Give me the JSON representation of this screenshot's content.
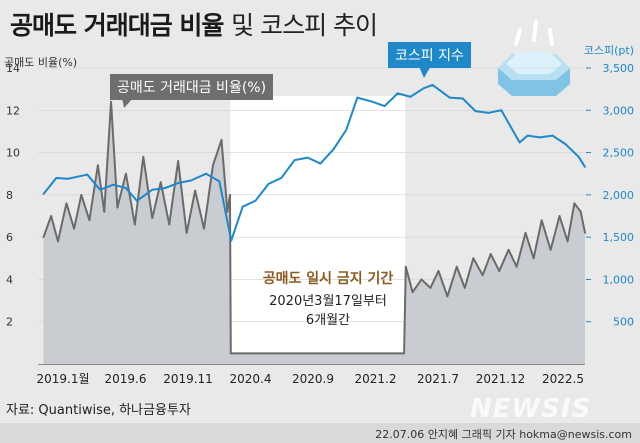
{
  "title": {
    "bold": "공매도 거래대금 비율",
    "rest": "및 코스피 추이"
  },
  "axes": {
    "left_title": "공매도 비율(%)",
    "right_title": "코스피(pt)"
  },
  "annotations": {
    "short_ratio_label": "공매도 거래대금 비율(%)",
    "kospi_label": "코스피 지수",
    "ban_title": "공매도 일시 금지 기간",
    "ban_line1": "2020년3월17일부터",
    "ban_line2": "6개월간"
  },
  "source": "자료: Quantiwise, 하나금융투자",
  "credit": "22.07.06 안지혜 그래픽 기자 hokma@newsis.com",
  "watermark": "NEWSIS",
  "colors": {
    "kospi": "#1f88c8",
    "short_ratio": "#6b6b6b",
    "area": "#c9cdd1",
    "ban_period": "#ffffff"
  },
  "chart_data": {
    "type": "line",
    "x_tick_labels": [
      "2019.1월",
      "2019.6",
      "2019.11",
      "2020.4",
      "2020.9",
      "2021.2",
      "2021.7",
      "2021.12",
      "2022.5"
    ],
    "x_range": [
      "2018-12-20",
      "2022-06-30"
    ],
    "ban_period": {
      "start": "2020-03-17",
      "end": "2021-05-03"
    },
    "y_left": {
      "label": "공매도 비율(%)",
      "range": [
        0,
        14
      ],
      "ticks": [
        2,
        4,
        6,
        8,
        10,
        12,
        14
      ]
    },
    "y_right": {
      "label": "코스피(pt)",
      "range": [
        0,
        3500
      ],
      "ticks": [
        500,
        1000,
        1500,
        2000,
        2500,
        3000,
        3500
      ],
      "tick_labels": [
        "500",
        "1,000",
        "1,500",
        "2,000",
        "2,500",
        "3,000",
        "3,500"
      ]
    },
    "series": [
      {
        "name": "공매도 거래대금 비율(%)",
        "axis": "left",
        "points": [
          [
            "2019-01-02",
            6.0
          ],
          [
            "2019-01-20",
            7.0
          ],
          [
            "2019-02-05",
            5.8
          ],
          [
            "2019-02-25",
            7.6
          ],
          [
            "2019-03-15",
            6.4
          ],
          [
            "2019-04-01",
            8.0
          ],
          [
            "2019-04-20",
            6.8
          ],
          [
            "2019-05-10",
            9.4
          ],
          [
            "2019-05-25",
            7.2
          ],
          [
            "2019-06-10",
            12.4
          ],
          [
            "2019-06-25",
            7.4
          ],
          [
            "2019-07-15",
            9.0
          ],
          [
            "2019-08-05",
            6.6
          ],
          [
            "2019-08-25",
            9.8
          ],
          [
            "2019-09-15",
            6.9
          ],
          [
            "2019-10-05",
            8.6
          ],
          [
            "2019-10-25",
            6.6
          ],
          [
            "2019-11-15",
            9.6
          ],
          [
            "2019-12-05",
            6.2
          ],
          [
            "2019-12-25",
            8.2
          ],
          [
            "2020-01-15",
            6.4
          ],
          [
            "2020-02-05",
            9.4
          ],
          [
            "2020-02-25",
            10.6
          ],
          [
            "2020-03-10",
            7.2
          ],
          [
            "2020-03-16",
            8.0
          ],
          [
            "2020-03-18",
            0.5
          ],
          [
            "2020-06-01",
            0.5
          ],
          [
            "2020-09-01",
            0.5
          ],
          [
            "2020-12-01",
            0.5
          ],
          [
            "2021-03-01",
            0.5
          ],
          [
            "2021-04-30",
            0.5
          ],
          [
            "2021-05-04",
            4.6
          ],
          [
            "2021-05-20",
            3.4
          ],
          [
            "2021-06-10",
            4.0
          ],
          [
            "2021-07-01",
            3.6
          ],
          [
            "2021-07-20",
            4.4
          ],
          [
            "2021-08-10",
            3.2
          ],
          [
            "2021-09-01",
            4.6
          ],
          [
            "2021-09-20",
            3.6
          ],
          [
            "2021-10-10",
            5.0
          ],
          [
            "2021-11-01",
            4.2
          ],
          [
            "2021-11-20",
            5.2
          ],
          [
            "2021-12-10",
            4.4
          ],
          [
            "2022-01-01",
            5.4
          ],
          [
            "2022-01-20",
            4.6
          ],
          [
            "2022-02-10",
            6.2
          ],
          [
            "2022-03-01",
            5.0
          ],
          [
            "2022-03-20",
            6.8
          ],
          [
            "2022-04-10",
            5.4
          ],
          [
            "2022-05-01",
            7.0
          ],
          [
            "2022-05-20",
            5.8
          ],
          [
            "2022-06-05",
            7.6
          ],
          [
            "2022-06-20",
            7.2
          ],
          [
            "2022-06-30",
            6.2
          ]
        ]
      },
      {
        "name": "코스피 지수",
        "axis": "right",
        "points": [
          [
            "2019-01-02",
            2010
          ],
          [
            "2019-02-01",
            2200
          ],
          [
            "2019-03-01",
            2190
          ],
          [
            "2019-04-15",
            2240
          ],
          [
            "2019-05-15",
            2060
          ],
          [
            "2019-06-15",
            2120
          ],
          [
            "2019-07-15",
            2080
          ],
          [
            "2019-08-10",
            1930
          ],
          [
            "2019-09-15",
            2060
          ],
          [
            "2019-10-15",
            2080
          ],
          [
            "2019-11-15",
            2140
          ],
          [
            "2019-12-15",
            2170
          ],
          [
            "2020-01-20",
            2250
          ],
          [
            "2020-02-20",
            2160
          ],
          [
            "2020-03-19",
            1460
          ],
          [
            "2020-04-15",
            1860
          ],
          [
            "2020-05-15",
            1930
          ],
          [
            "2020-06-15",
            2130
          ],
          [
            "2020-07-15",
            2200
          ],
          [
            "2020-08-15",
            2410
          ],
          [
            "2020-09-15",
            2440
          ],
          [
            "2020-10-15",
            2370
          ],
          [
            "2020-11-15",
            2540
          ],
          [
            "2020-12-15",
            2770
          ],
          [
            "2021-01-10",
            3150
          ],
          [
            "2021-02-15",
            3100
          ],
          [
            "2021-03-15",
            3050
          ],
          [
            "2021-04-15",
            3200
          ],
          [
            "2021-05-15",
            3160
          ],
          [
            "2021-06-15",
            3260
          ],
          [
            "2021-07-06",
            3300
          ],
          [
            "2021-08-15",
            3150
          ],
          [
            "2021-09-15",
            3140
          ],
          [
            "2021-10-15",
            2990
          ],
          [
            "2021-11-15",
            2970
          ],
          [
            "2021-12-15",
            3000
          ],
          [
            "2022-01-27",
            2620
          ],
          [
            "2022-02-15",
            2700
          ],
          [
            "2022-03-15",
            2680
          ],
          [
            "2022-04-15",
            2700
          ],
          [
            "2022-05-15",
            2600
          ],
          [
            "2022-06-15",
            2450
          ],
          [
            "2022-06-30",
            2330
          ]
        ]
      }
    ]
  }
}
